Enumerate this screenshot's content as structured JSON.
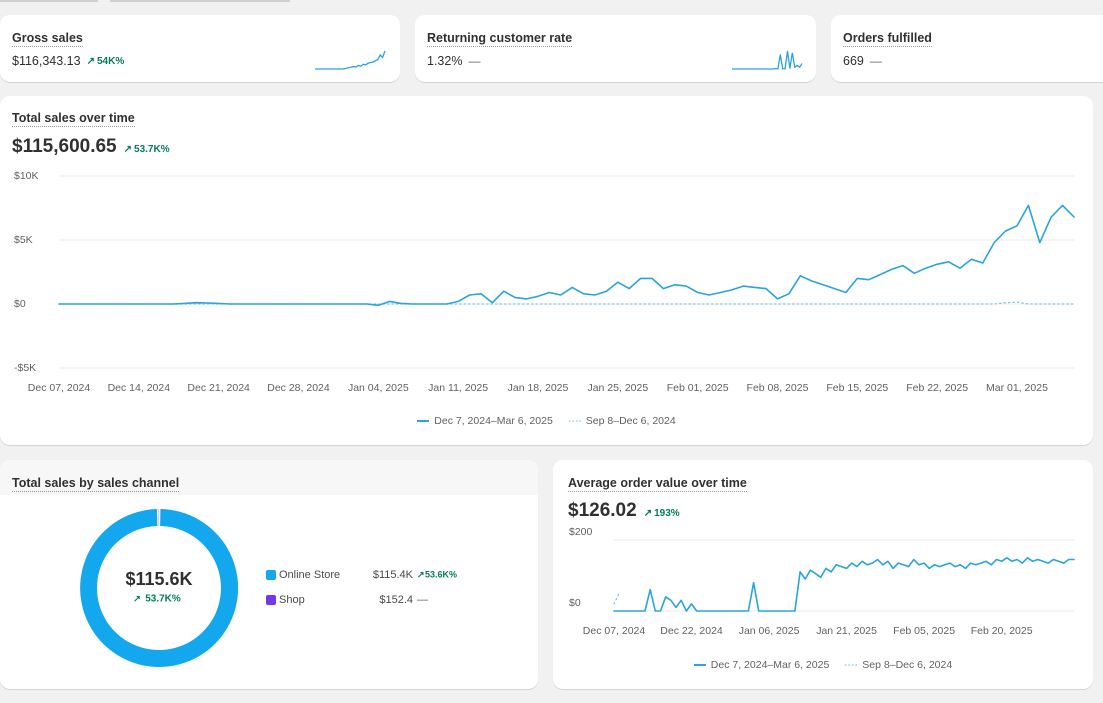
{
  "metrics": [
    {
      "title": "Gross sales",
      "value": "$116,343.13",
      "change": "54K%",
      "trend": "up",
      "sparkline": {
        "color": "#29a4dd",
        "values": [
          0,
          0,
          0,
          0,
          0,
          0,
          0,
          0,
          0,
          0,
          50,
          0,
          100,
          300,
          500,
          800,
          1000,
          900,
          1500,
          1200,
          2000,
          1800,
          2500,
          2800,
          3000,
          3500,
          4000,
          6000,
          5000,
          7700
        ]
      }
    },
    {
      "title": "Returning customer rate",
      "value": "1.32%",
      "change": "—",
      "trend": null,
      "sparkline": {
        "color": "#29a4dd",
        "values": [
          0,
          0,
          0,
          0,
          0,
          0,
          0,
          0,
          0,
          0,
          0,
          0,
          0,
          0,
          0,
          0,
          0,
          0,
          0.2,
          0.1,
          8,
          0.1,
          0.2,
          10,
          0.3,
          9,
          1,
          2,
          1,
          3
        ]
      }
    },
    {
      "title": "Orders fulfilled",
      "value": "669",
      "change": "—",
      "trend": null
    }
  ],
  "chart_data": [
    {
      "type": "line",
      "title": "Total sales over time",
      "total": "$115,600.65",
      "change": "53.7K%",
      "trend": "up",
      "categories": [
        "Dec 07, 2024",
        null,
        null,
        null,
        null,
        null,
        null,
        "Dec 14, 2024",
        null,
        null,
        null,
        null,
        null,
        null,
        "Dec 21, 2024",
        null,
        null,
        null,
        null,
        null,
        null,
        "Dec 28, 2024",
        null,
        null,
        null,
        null,
        null,
        null,
        "Jan 04, 2025",
        null,
        null,
        null,
        null,
        null,
        null,
        "Jan 11, 2025",
        null,
        null,
        null,
        null,
        null,
        null,
        "Jan 18, 2025",
        null,
        null,
        null,
        null,
        null,
        null,
        "Jan 25, 2025",
        null,
        null,
        null,
        null,
        null,
        null,
        "Feb 01, 2025",
        null,
        null,
        null,
        null,
        null,
        null,
        "Feb 08, 2025",
        null,
        null,
        null,
        null,
        null,
        null,
        "Feb 15, 2025",
        null,
        null,
        null,
        null,
        null,
        null,
        "Feb 22, 2025",
        null,
        null,
        null,
        null,
        null,
        null,
        "Mar 01, 2025",
        null,
        null,
        null,
        null,
        null
      ],
      "series": [
        {
          "name": "Dec 7, 2024–Mar 6, 2025",
          "color": "#29a4dd",
          "style": "solid",
          "values": [
            0,
            0,
            0,
            0,
            0,
            0,
            0,
            0,
            0,
            0,
            0,
            50,
            100,
            80,
            50,
            0,
            0,
            0,
            0,
            0,
            0,
            0,
            0,
            0,
            0,
            0,
            0,
            0,
            -100,
            200,
            50,
            0,
            0,
            0,
            0,
            200,
            700,
            800,
            100,
            1000,
            500,
            400,
            600,
            900,
            700,
            1300,
            800,
            700,
            1000,
            1700,
            1200,
            2000,
            2000,
            1200,
            1500,
            1400,
            900,
            700,
            900,
            1100,
            1400,
            1300,
            1200,
            400,
            800,
            2200,
            1800,
            1500,
            1200,
            900,
            2000,
            1900,
            2300,
            2700,
            3000,
            2400,
            2800,
            3100,
            3300,
            2800,
            3500,
            3200,
            4800,
            5700,
            6100,
            7700,
            4800,
            6800,
            7700,
            6800
          ]
        },
        {
          "name": "Sep 8–Dec 6, 2024",
          "color": "#7cc6ec",
          "style": "dotted",
          "values": [
            0,
            0,
            0,
            0,
            0,
            0,
            0,
            0,
            0,
            0,
            0,
            0,
            0,
            0,
            0,
            0,
            0,
            0,
            0,
            0,
            0,
            0,
            0,
            0,
            0,
            0,
            0,
            0,
            0,
            0,
            0,
            0,
            0,
            0,
            0,
            0,
            0,
            0,
            0,
            0,
            0,
            0,
            0,
            0,
            0,
            0,
            0,
            0,
            0,
            0,
            0,
            0,
            0,
            0,
            0,
            0,
            0,
            0,
            0,
            0,
            0,
            0,
            0,
            0,
            0,
            0,
            0,
            0,
            0,
            0,
            0,
            0,
            0,
            0,
            0,
            0,
            0,
            0,
            0,
            0,
            0,
            0,
            0,
            100,
            150,
            0,
            0,
            0,
            0,
            0
          ]
        }
      ],
      "ylim": [
        -5000,
        10000
      ],
      "yticks": [
        {
          "value": 10000,
          "label": "$10K"
        },
        {
          "value": 5000,
          "label": "$5K"
        },
        {
          "value": 0,
          "label": "$0"
        },
        {
          "value": -5000,
          "label": "-$5K"
        }
      ],
      "grid": true
    },
    {
      "type": "donut",
      "title": "Total sales by sales channel",
      "center_value": "$115.6K",
      "center_change": "53.7K%",
      "center_trend": "up",
      "categories": [
        "Online Store",
        "Shop"
      ],
      "values": [
        115400,
        152.4
      ],
      "value_labels": [
        "$115.4K",
        "$152.4"
      ],
      "changes": [
        "53.6K%",
        "—"
      ],
      "trends": [
        "up",
        null
      ],
      "colors": [
        "#13a8ee",
        "#7239ea"
      ]
    },
    {
      "type": "line",
      "title": "Average order value over time",
      "total": "$126.02",
      "change": "193%",
      "trend": "up",
      "categories": [
        "Dec 07, 2024",
        null,
        null,
        null,
        null,
        null,
        null,
        null,
        null,
        null,
        null,
        null,
        null,
        null,
        null,
        "Dec 22, 2024",
        null,
        null,
        null,
        null,
        null,
        null,
        null,
        null,
        null,
        null,
        null,
        null,
        null,
        null,
        "Jan 06, 2025",
        null,
        null,
        null,
        null,
        null,
        null,
        null,
        null,
        null,
        null,
        null,
        null,
        null,
        null,
        "Jan 21, 2025",
        null,
        null,
        null,
        null,
        null,
        null,
        null,
        null,
        null,
        null,
        null,
        null,
        null,
        null,
        "Feb 05, 2025",
        null,
        null,
        null,
        null,
        null,
        null,
        null,
        null,
        null,
        null,
        null,
        null,
        null,
        null,
        "Feb 20, 2025",
        null,
        null,
        null,
        null,
        null,
        null,
        null,
        null,
        null,
        null,
        null,
        null,
        null,
        null
      ],
      "series": [
        {
          "name": "Dec 7, 2024–Mar 6, 2025",
          "color": "#29a4dd",
          "style": "solid",
          "values": [
            0,
            0,
            0,
            0,
            0,
            0,
            0,
            60,
            0,
            0,
            40,
            30,
            10,
            30,
            0,
            20,
            0,
            0,
            0,
            0,
            0,
            0,
            0,
            0,
            0,
            0,
            0,
            80,
            0,
            0,
            0,
            0,
            0,
            0,
            0,
            0,
            110,
            90,
            115,
            105,
            95,
            120,
            110,
            130,
            125,
            120,
            135,
            125,
            140,
            130,
            135,
            145,
            130,
            140,
            120,
            135,
            130,
            125,
            145,
            130,
            135,
            120,
            130,
            125,
            130,
            135,
            125,
            130,
            120,
            135,
            130,
            135,
            140,
            130,
            145,
            140,
            150,
            140,
            145,
            135,
            150,
            140,
            145,
            140,
            135,
            145,
            140,
            135,
            145,
            145
          ]
        },
        {
          "name": "Sep 8–Dec 6, 2024",
          "color": "#7cc6ec",
          "style": "dotted",
          "values": [
            20,
            50,
            null,
            null,
            null,
            null,
            null,
            null,
            null,
            null,
            null,
            null,
            null,
            null,
            null,
            null,
            null,
            null,
            null,
            null,
            null,
            null,
            null,
            null,
            null,
            null,
            null,
            null,
            null,
            null,
            null,
            null,
            null,
            null,
            null,
            null,
            null,
            null,
            null,
            null,
            null,
            null,
            null,
            null,
            null,
            null,
            null,
            null,
            null,
            null,
            null,
            null,
            null,
            null,
            null,
            null,
            null,
            null,
            null,
            null,
            null,
            null,
            null,
            null,
            null,
            null,
            null,
            null,
            null,
            null,
            null,
            null,
            null,
            null,
            null,
            null,
            null,
            null,
            null,
            null,
            null,
            null,
            null,
            null,
            null,
            null,
            null,
            null,
            null,
            null
          ]
        }
      ],
      "ylim": [
        0,
        200
      ],
      "yticks": [
        {
          "value": 200,
          "label": "$200"
        },
        {
          "value": 0,
          "label": "$0"
        }
      ],
      "grid": true
    }
  ]
}
